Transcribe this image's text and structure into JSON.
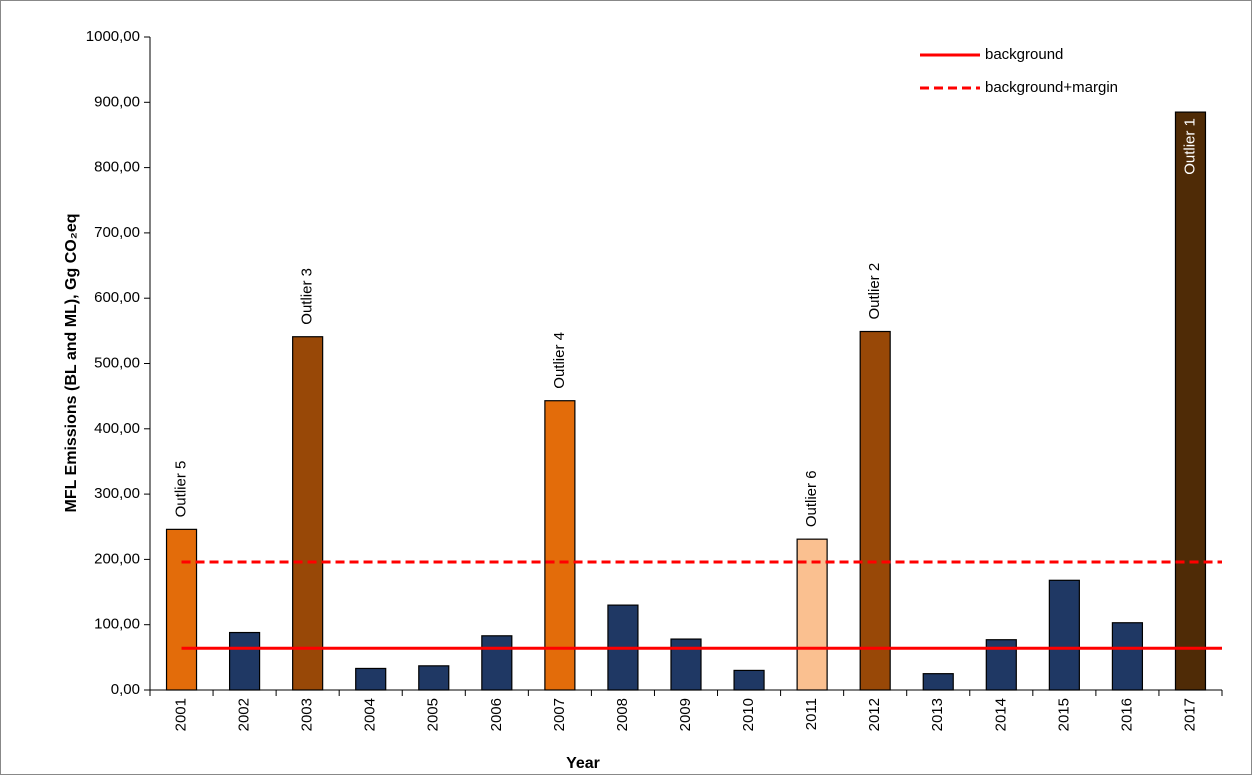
{
  "chart_data": {
    "type": "bar",
    "x_label": "Year",
    "y_label": "MFL Emissions (BL and ML), Gg CO₂eq",
    "categories": [
      "2001",
      "2002",
      "2003",
      "2004",
      "2005",
      "2006",
      "2007",
      "2008",
      "2009",
      "2010",
      "2011",
      "2012",
      "2013",
      "2014",
      "2015",
      "2016",
      "2017"
    ],
    "values": [
      246,
      88,
      541,
      33,
      37,
      83,
      443,
      130,
      78,
      30,
      231,
      549,
      25,
      77,
      168,
      103,
      885
    ],
    "value_labels": [
      "Outlier 5",
      null,
      "Outlier 3",
      null,
      null,
      null,
      "Outlier 4",
      null,
      null,
      null,
      "Outlier 6",
      "Outlier 2",
      null,
      null,
      null,
      null,
      "Outlier 1"
    ],
    "colors": [
      "#e36c0a",
      "#1f3864",
      "#984807",
      "#1f3864",
      "#1f3864",
      "#1f3864",
      "#e36c0a",
      "#1f3864",
      "#1f3864",
      "#1f3864",
      "#fac090",
      "#984807",
      "#1f3864",
      "#1f3864",
      "#1f3864",
      "#1f3864",
      "#4f2b06"
    ],
    "lines": [
      {
        "name": "background",
        "value": 64,
        "color": "#ff0000",
        "style": "solid"
      },
      {
        "name": "background+margin",
        "value": 196,
        "color": "#ff0000",
        "style": "dashed"
      }
    ],
    "ylim": [
      0,
      1000
    ],
    "yticks": [
      {
        "value": 0,
        "label": "0,00"
      },
      {
        "value": 100,
        "label": "100,00"
      },
      {
        "value": 200,
        "label": "200,00"
      },
      {
        "value": 300,
        "label": "300,00"
      },
      {
        "value": 400,
        "label": "400,00"
      },
      {
        "value": 500,
        "label": "500,00"
      },
      {
        "value": 600,
        "label": "600,00"
      },
      {
        "value": 700,
        "label": "700,00"
      },
      {
        "value": 800,
        "label": "800,00"
      },
      {
        "value": 900,
        "label": "900,00"
      },
      {
        "value": 1000,
        "label": "1000,00"
      }
    ],
    "grid": false,
    "legend": "top-right"
  }
}
